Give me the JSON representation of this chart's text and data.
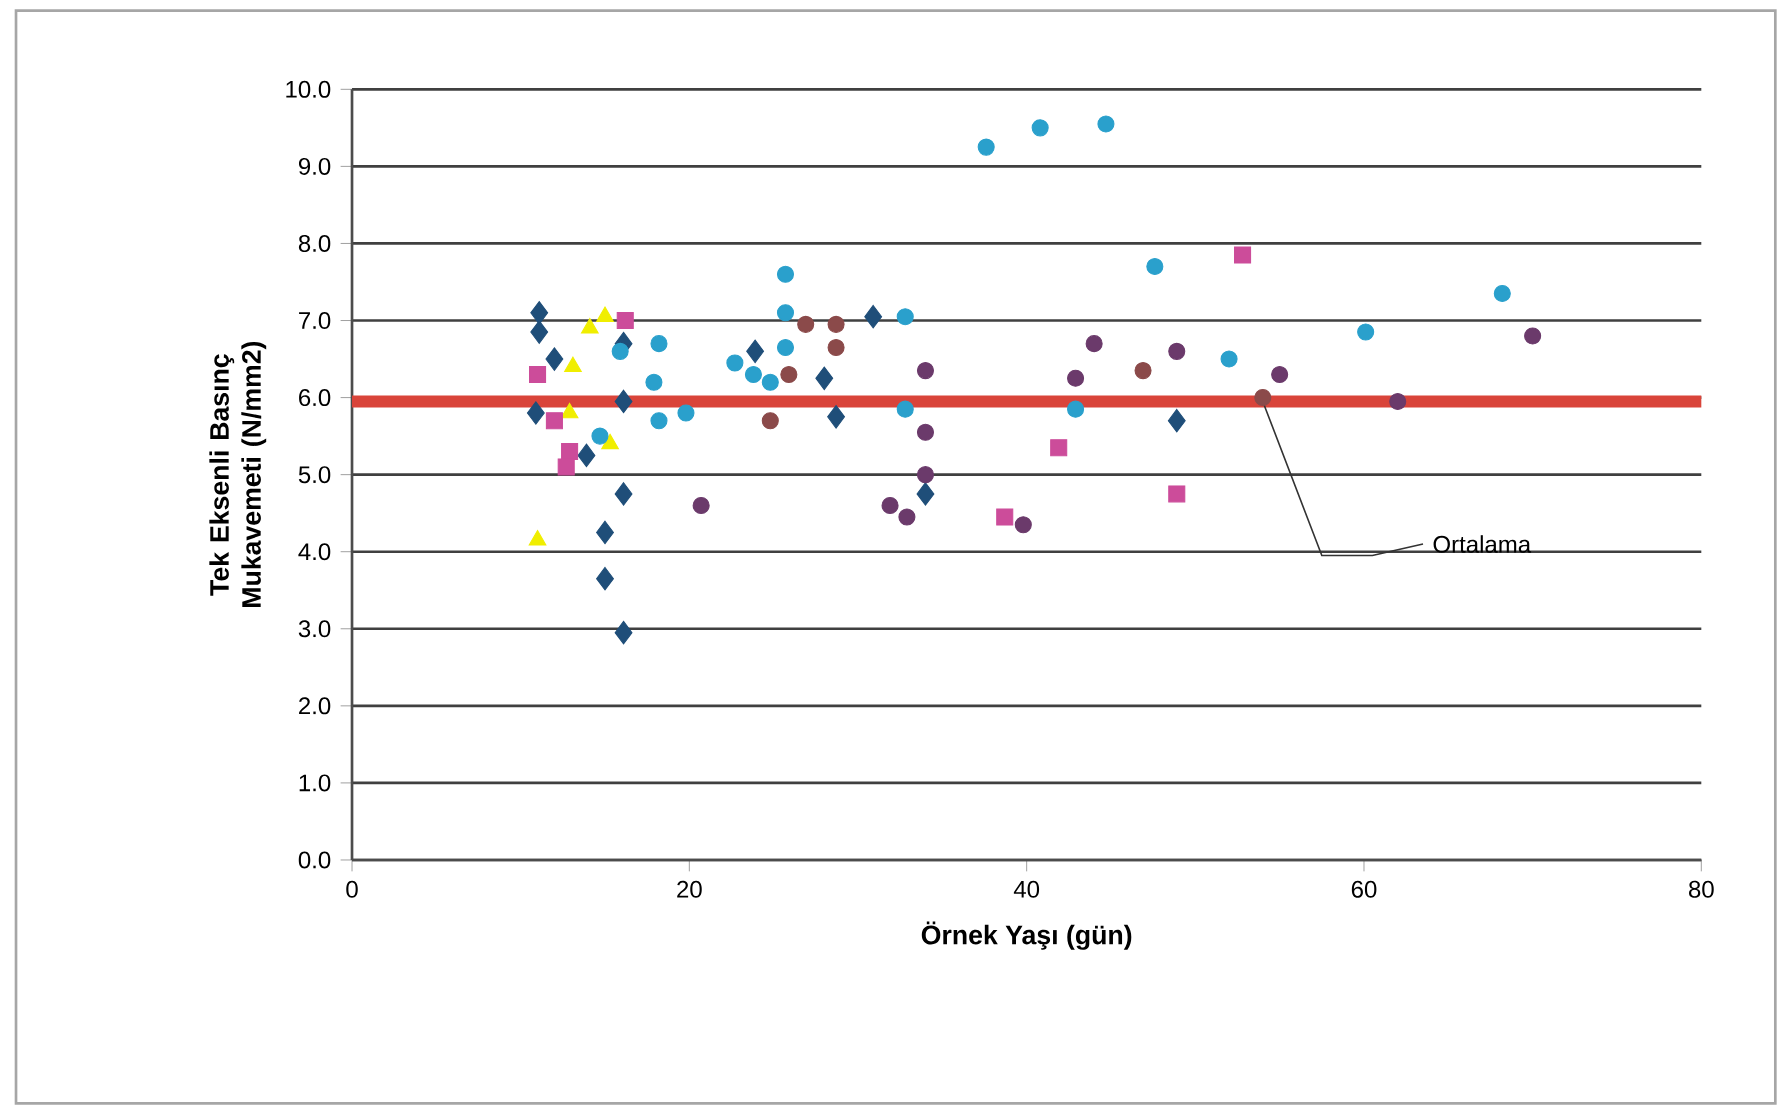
{
  "chart_data": {
    "type": "scatter",
    "xlabel": "Örnek Yaşı (gün)",
    "ylabel": "Tek Eksenli Basınç Mukavemeti (N/mm2)",
    "xlim": [
      0,
      80
    ],
    "xticks": [
      0,
      20,
      40,
      60,
      80
    ],
    "ylim": [
      0,
      10
    ],
    "yticks": [
      {
        "value": 0,
        "label": "0.0"
      },
      {
        "value": 1,
        "label": "1.0"
      },
      {
        "value": 2,
        "label": "2.0"
      },
      {
        "value": 3,
        "label": "3.0"
      },
      {
        "value": 4,
        "label": "4.0"
      },
      {
        "value": 5,
        "label": "5.0"
      },
      {
        "value": 6,
        "label": "6.0"
      },
      {
        "value": 7,
        "label": "7.0"
      },
      {
        "value": 8,
        "label": "8.0"
      },
      {
        "value": 9,
        "label": "9.0"
      },
      {
        "value": 10,
        "label": "10.0"
      }
    ],
    "grid": "y",
    "ref_lines": [
      {
        "axis": "y",
        "value": 5.95,
        "label": "Ortalama",
        "color": "#d9443a"
      }
    ],
    "series": [
      {
        "color": "#1f4e79",
        "marker": "diamond",
        "x": [
          11.1,
          11.1,
          12.0,
          10.9,
          16.1,
          13.9,
          16.1,
          15.0,
          15.0,
          16.1,
          16.1,
          23.9,
          30.9,
          28.0,
          28.7,
          34.0,
          48.9
        ],
        "values": [
          7.1,
          6.85,
          6.5,
          5.8,
          5.95,
          5.25,
          4.75,
          4.25,
          3.65,
          2.95,
          6.7,
          6.6,
          7.05,
          6.25,
          5.75,
          4.75,
          5.7
        ]
      },
      {
        "color": "#f0ee00",
        "marker": "triangle",
        "x": [
          11.0,
          15.0,
          14.1,
          13.1,
          12.9,
          15.3
        ],
        "values": [
          4.15,
          7.05,
          6.9,
          6.4,
          5.8,
          5.4
        ]
      },
      {
        "color": "#cc4c9a",
        "marker": "square",
        "x": [
          16.2,
          11.0,
          12.0,
          12.9,
          12.7,
          41.9,
          38.7,
          52.8,
          48.9
        ],
        "values": [
          7.0,
          6.3,
          5.7,
          5.3,
          5.1,
          5.35,
          4.45,
          7.85,
          4.75
        ]
      },
      {
        "color": "#2aa0cc",
        "marker": "circle",
        "x": [
          18.2,
          17.9,
          18.2,
          19.8,
          15.9,
          14.7,
          37.6,
          40.8,
          44.7,
          47.6,
          25.7,
          25.7,
          25.7,
          22.7,
          23.8,
          24.8,
          32.8,
          32.8,
          42.9,
          52.0,
          60.1,
          68.2
        ],
        "values": [
          6.7,
          6.2,
          5.7,
          5.8,
          6.6,
          5.5,
          9.25,
          9.5,
          9.55,
          7.7,
          7.6,
          7.1,
          6.65,
          6.45,
          6.3,
          6.2,
          7.05,
          5.85,
          5.85,
          6.5,
          6.85,
          7.35
        ]
      },
      {
        "color": "#6b3a6b",
        "marker": "circle",
        "x": [
          20.7,
          34.0,
          34.0,
          34.0,
          31.9,
          32.9,
          39.8,
          44.0,
          42.9,
          48.9,
          55.0,
          70.0,
          62.0
        ],
        "values": [
          4.6,
          6.35,
          5.55,
          5.0,
          4.6,
          4.45,
          4.35,
          6.7,
          6.25,
          6.6,
          6.3,
          6.8,
          5.95
        ]
      },
      {
        "color": "#8b4a4a",
        "marker": "circle",
        "x": [
          26.9,
          28.7,
          28.7,
          25.9,
          24.8,
          46.9,
          54.0
        ],
        "values": [
          6.95,
          6.95,
          6.65,
          6.3,
          5.7,
          6.35,
          6.0
        ]
      }
    ]
  }
}
